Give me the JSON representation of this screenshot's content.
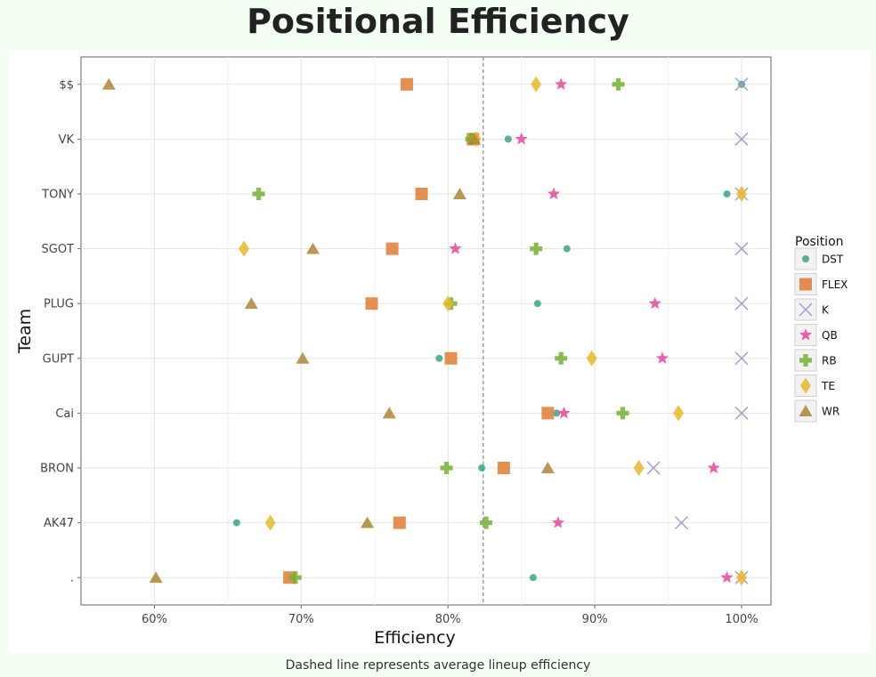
{
  "title": "Positional Efficiency",
  "caption": "Dashed line represents average lineup efficiency",
  "chart_data": {
    "type": "scatter",
    "xlabel": "Efficiency",
    "ylabel": "Team",
    "xlim": [
      0.55,
      1.02
    ],
    "x_ticks": [
      0.6,
      0.7,
      0.8,
      0.9,
      1.0
    ],
    "x_tick_labels": [
      "60%",
      "70%",
      "80%",
      "90%",
      "100%"
    ],
    "categories": [
      "$$",
      "VK",
      "TONY",
      "SGOT",
      "PLUG",
      "GUPT",
      "Cai",
      "BRON",
      "AK47",
      "."
    ],
    "average_line": 0.824,
    "grid": true,
    "legend_title": "Position",
    "legend_position": "right",
    "series": [
      {
        "name": "DST",
        "color": "#3ba58a",
        "marker": "circle",
        "values": [
          1.0,
          0.841,
          0.99,
          0.881,
          0.861,
          0.794,
          0.874,
          0.823,
          0.656,
          0.858
        ]
      },
      {
        "name": "FLEX",
        "color": "#e07d33",
        "marker": "square",
        "values": [
          0.772,
          0.817,
          0.782,
          0.762,
          0.748,
          0.802,
          0.868,
          0.838,
          0.767,
          0.692
        ]
      },
      {
        "name": "K",
        "color": "#a39bc9",
        "marker": "x",
        "values": [
          1.0,
          1.0,
          1.0,
          1.0,
          1.0,
          1.0,
          1.0,
          0.94,
          0.959,
          1.0
        ]
      },
      {
        "name": "QB",
        "color": "#e8479e",
        "marker": "star",
        "values": [
          0.877,
          0.85,
          0.872,
          0.805,
          0.941,
          0.946,
          0.879,
          0.981,
          0.875,
          0.99
        ]
      },
      {
        "name": "RB",
        "color": "#75b232",
        "marker": "plus",
        "values": [
          0.916,
          0.816,
          0.671,
          0.86,
          0.802,
          0.877,
          0.919,
          0.799,
          0.826,
          0.696
        ]
      },
      {
        "name": "TE",
        "color": "#e9b82a",
        "marker": "diamond",
        "values": [
          0.86,
          0.819,
          1.0,
          0.661,
          0.8,
          0.898,
          0.957,
          0.93,
          0.679,
          1.0
        ]
      },
      {
        "name": "WR",
        "color": "#ac8635",
        "marker": "triangle",
        "values": [
          0.569,
          0.818,
          0.808,
          0.708,
          0.666,
          0.701,
          0.76,
          0.868,
          0.745,
          0.601
        ]
      }
    ]
  }
}
